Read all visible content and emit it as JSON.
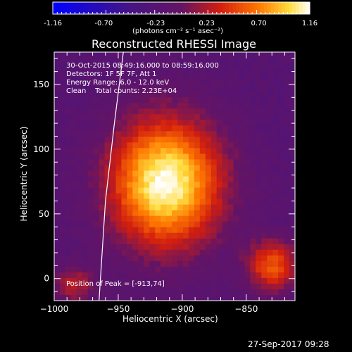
{
  "colorbar": {
    "tick_labels": [
      "-1.16",
      "-0.70",
      "-0.23",
      "0.23",
      "0.70",
      "1.16"
    ],
    "tick_values": [
      -1.16,
      -0.7,
      -0.23,
      0.23,
      0.7,
      1.16
    ],
    "range": [
      -1.16,
      1.16
    ],
    "units_label": "(photons cm⁻² s⁻¹ asec⁻²)"
  },
  "chart_data": {
    "type": "heatmap",
    "title": "Reconstructed RHESSI Image",
    "xlabel": "Heliocentric X (arcsec)",
    "ylabel": "Heliocentric Y (arcsec)",
    "xlim": [
      -1000,
      -812
    ],
    "ylim": [
      -17,
      175
    ],
    "xticks": [
      -1000,
      -950,
      -900,
      -850
    ],
    "xtick_labels": [
      "−1000",
      "−950",
      "−900",
      "−850"
    ],
    "yticks": [
      0,
      50,
      100,
      150
    ],
    "ytick_labels": [
      "0",
      "50",
      "100",
      "150"
    ],
    "colormap": "blue-purple-red-orange-yellow-white",
    "annotations": [
      "30-Oct-2015 08:49:16.000 to 08:59:16.000",
      "Detectors: 1F 5F 7F, Att 1",
      "Energy Range: 6.0 - 12.0 keV",
      "Clean    Total counts: 2.23E+04"
    ],
    "peak_label": "Position of Peak = [-913,74]",
    "peak": {
      "x": -913,
      "y": 74
    },
    "sources": [
      {
        "x": -913,
        "y": 74,
        "sx": 30,
        "sy": 34,
        "amp": 1.16
      },
      {
        "x": -830,
        "y": 10,
        "sx": 14,
        "sy": 14,
        "amp": 0.55
      },
      {
        "x": -985,
        "y": -5,
        "sx": 12,
        "sy": 10,
        "amp": 0.25
      }
    ],
    "limb_curve": [
      [
        -965,
        -17
      ],
      [
        -960,
        60
      ],
      [
        -953,
        120
      ],
      [
        -946,
        175
      ]
    ]
  },
  "footer": {
    "date": "27-Sep-2017 09:28"
  }
}
